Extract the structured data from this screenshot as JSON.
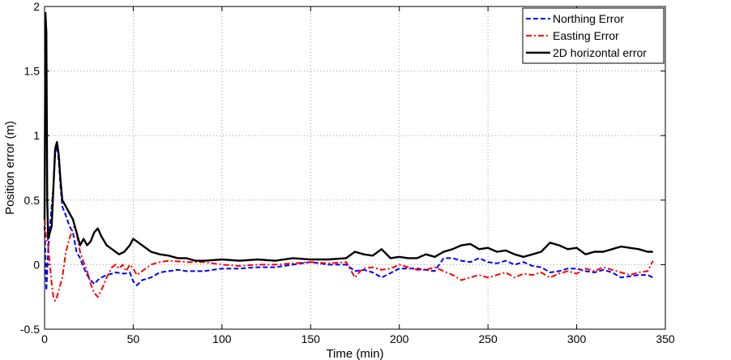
{
  "chart_data": {
    "type": "line",
    "title": "",
    "xlabel": "Time (min)",
    "ylabel": "Position error (m)",
    "xlim": [
      0,
      350
    ],
    "ylim": [
      -0.5,
      2
    ],
    "xticks": [
      0,
      50,
      100,
      150,
      200,
      250,
      300,
      350
    ],
    "yticks": [
      -0.5,
      0,
      0.5,
      1,
      1.5,
      2
    ],
    "xtick_labels": [
      "0",
      "50",
      "100",
      "150",
      "200",
      "250",
      "300",
      "350"
    ],
    "ytick_labels": [
      "-0.5",
      "0",
      "0.5",
      "1",
      "1.5",
      "2"
    ],
    "grid": true,
    "legend_position": "top-right",
    "series": [
      {
        "name": "Northing Error",
        "color": "#0000ff",
        "style": "dashed",
        "points": [
          [
            0,
            0.3
          ],
          [
            1,
            -0.2
          ],
          [
            2,
            0.1
          ],
          [
            3,
            0.3
          ],
          [
            5,
            0.6
          ],
          [
            6,
            0.85
          ],
          [
            7,
            0.92
          ],
          [
            8,
            0.8
          ],
          [
            9,
            0.6
          ],
          [
            10,
            0.45
          ],
          [
            12,
            0.38
          ],
          [
            14,
            0.3
          ],
          [
            16,
            0.25
          ],
          [
            18,
            0.1
          ],
          [
            20,
            0.05
          ],
          [
            22,
            -0.02
          ],
          [
            24,
            -0.08
          ],
          [
            26,
            -0.12
          ],
          [
            28,
            -0.15
          ],
          [
            30,
            -0.12
          ],
          [
            32,
            -0.1
          ],
          [
            35,
            -0.08
          ],
          [
            38,
            -0.07
          ],
          [
            40,
            -0.06
          ],
          [
            45,
            -0.07
          ],
          [
            48,
            -0.06
          ],
          [
            50,
            -0.13
          ],
          [
            52,
            -0.16
          ],
          [
            55,
            -0.12
          ],
          [
            60,
            -0.1
          ],
          [
            65,
            -0.06
          ],
          [
            70,
            -0.05
          ],
          [
            75,
            -0.04
          ],
          [
            80,
            -0.05
          ],
          [
            90,
            -0.05
          ],
          [
            100,
            -0.03
          ],
          [
            110,
            -0.03
          ],
          [
            120,
            -0.02
          ],
          [
            130,
            -0.02
          ],
          [
            140,
            0.0
          ],
          [
            150,
            0.02
          ],
          [
            160,
            0.0
          ],
          [
            170,
            0.0
          ],
          [
            175,
            -0.05
          ],
          [
            180,
            -0.04
          ],
          [
            185,
            -0.06
          ],
          [
            190,
            -0.1
          ],
          [
            193,
            -0.08
          ],
          [
            200,
            -0.03
          ],
          [
            210,
            -0.03
          ],
          [
            220,
            -0.05
          ],
          [
            225,
            0.05
          ],
          [
            230,
            0.05
          ],
          [
            235,
            0.03
          ],
          [
            240,
            0.02
          ],
          [
            245,
            0.05
          ],
          [
            250,
            0.02
          ],
          [
            255,
            0.01
          ],
          [
            260,
            0.03
          ],
          [
            265,
            0.0
          ],
          [
            270,
            0.02
          ],
          [
            275,
            -0.01
          ],
          [
            280,
            -0.02
          ],
          [
            285,
            -0.06
          ],
          [
            290,
            -0.05
          ],
          [
            295,
            -0.03
          ],
          [
            300,
            -0.03
          ],
          [
            305,
            -0.05
          ],
          [
            310,
            -0.06
          ],
          [
            315,
            -0.04
          ],
          [
            320,
            -0.06
          ],
          [
            325,
            -0.1
          ],
          [
            330,
            -0.09
          ],
          [
            335,
            -0.08
          ],
          [
            340,
            -0.08
          ],
          [
            343,
            -0.1
          ]
        ]
      },
      {
        "name": "Easting Error",
        "color": "#ff0000",
        "style": "dashdot",
        "points": [
          [
            0,
            0.35
          ],
          [
            1,
            0.2
          ],
          [
            2,
            0.15
          ],
          [
            3,
            0.0
          ],
          [
            4,
            -0.15
          ],
          [
            5,
            -0.25
          ],
          [
            6,
            -0.28
          ],
          [
            7,
            -0.25
          ],
          [
            8,
            -0.2
          ],
          [
            10,
            -0.1
          ],
          [
            12,
            0.1
          ],
          [
            14,
            0.2
          ],
          [
            16,
            0.28
          ],
          [
            17,
            0.3
          ],
          [
            18,
            0.25
          ],
          [
            20,
            0.1
          ],
          [
            22,
            0.02
          ],
          [
            24,
            -0.05
          ],
          [
            26,
            -0.15
          ],
          [
            28,
            -0.22
          ],
          [
            30,
            -0.25
          ],
          [
            32,
            -0.2
          ],
          [
            35,
            -0.1
          ],
          [
            38,
            -0.02
          ],
          [
            40,
            0.0
          ],
          [
            42,
            -0.03
          ],
          [
            44,
            0.0
          ],
          [
            46,
            -0.05
          ],
          [
            48,
            0.0
          ],
          [
            50,
            -0.03
          ],
          [
            52,
            -0.08
          ],
          [
            55,
            -0.05
          ],
          [
            60,
            0.0
          ],
          [
            65,
            0.02
          ],
          [
            70,
            0.03
          ],
          [
            80,
            0.02
          ],
          [
            90,
            0.02
          ],
          [
            100,
            0.0
          ],
          [
            110,
            -0.01
          ],
          [
            120,
            0.0
          ],
          [
            130,
            0.0
          ],
          [
            140,
            0.01
          ],
          [
            150,
            0.02
          ],
          [
            160,
            0.01
          ],
          [
            170,
            0.02
          ],
          [
            175,
            -0.1
          ],
          [
            178,
            -0.05
          ],
          [
            180,
            -0.03
          ],
          [
            185,
            -0.02
          ],
          [
            190,
            -0.04
          ],
          [
            195,
            -0.03
          ],
          [
            200,
            0.0
          ],
          [
            205,
            -0.02
          ],
          [
            210,
            -0.04
          ],
          [
            215,
            -0.04
          ],
          [
            220,
            -0.02
          ],
          [
            225,
            -0.05
          ],
          [
            230,
            -0.08
          ],
          [
            235,
            -0.12
          ],
          [
            240,
            -0.1
          ],
          [
            245,
            -0.08
          ],
          [
            250,
            -0.1
          ],
          [
            255,
            -0.08
          ],
          [
            260,
            -0.06
          ],
          [
            265,
            -0.1
          ],
          [
            270,
            -0.07
          ],
          [
            275,
            -0.08
          ],
          [
            280,
            -0.06
          ],
          [
            285,
            -0.1
          ],
          [
            290,
            -0.07
          ],
          [
            295,
            -0.05
          ],
          [
            300,
            -0.07
          ],
          [
            305,
            -0.03
          ],
          [
            310,
            -0.05
          ],
          [
            315,
            -0.02
          ],
          [
            320,
            -0.04
          ],
          [
            325,
            -0.06
          ],
          [
            330,
            -0.08
          ],
          [
            335,
            -0.06
          ],
          [
            340,
            -0.05
          ],
          [
            343,
            0.03
          ]
        ]
      },
      {
        "name": "2D horizontal error",
        "color": "#000000",
        "style": "solid",
        "points": [
          [
            0,
            0.35
          ],
          [
            0.5,
            1.95
          ],
          [
            1,
            1.8
          ],
          [
            1.5,
            0.5
          ],
          [
            2,
            0.2
          ],
          [
            3,
            0.25
          ],
          [
            4,
            0.3
          ],
          [
            5,
            0.6
          ],
          [
            6,
            0.9
          ],
          [
            7,
            0.95
          ],
          [
            8,
            0.85
          ],
          [
            9,
            0.65
          ],
          [
            10,
            0.5
          ],
          [
            12,
            0.45
          ],
          [
            14,
            0.4
          ],
          [
            16,
            0.35
          ],
          [
            18,
            0.25
          ],
          [
            20,
            0.15
          ],
          [
            22,
            0.2
          ],
          [
            24,
            0.15
          ],
          [
            26,
            0.18
          ],
          [
            28,
            0.25
          ],
          [
            30,
            0.28
          ],
          [
            32,
            0.22
          ],
          [
            35,
            0.15
          ],
          [
            38,
            0.12
          ],
          [
            40,
            0.1
          ],
          [
            42,
            0.08
          ],
          [
            45,
            0.1
          ],
          [
            48,
            0.15
          ],
          [
            50,
            0.2
          ],
          [
            52,
            0.18
          ],
          [
            55,
            0.15
          ],
          [
            60,
            0.1
          ],
          [
            65,
            0.08
          ],
          [
            70,
            0.07
          ],
          [
            75,
            0.05
          ],
          [
            80,
            0.05
          ],
          [
            85,
            0.03
          ],
          [
            90,
            0.03
          ],
          [
            100,
            0.04
          ],
          [
            110,
            0.03
          ],
          [
            120,
            0.04
          ],
          [
            130,
            0.03
          ],
          [
            140,
            0.05
          ],
          [
            150,
            0.04
          ],
          [
            160,
            0.04
          ],
          [
            170,
            0.05
          ],
          [
            175,
            0.1
          ],
          [
            180,
            0.08
          ],
          [
            185,
            0.07
          ],
          [
            190,
            0.12
          ],
          [
            195,
            0.05
          ],
          [
            200,
            0.06
          ],
          [
            205,
            0.05
          ],
          [
            210,
            0.05
          ],
          [
            215,
            0.08
          ],
          [
            220,
            0.06
          ],
          [
            225,
            0.1
          ],
          [
            230,
            0.12
          ],
          [
            235,
            0.15
          ],
          [
            240,
            0.16
          ],
          [
            245,
            0.12
          ],
          [
            250,
            0.13
          ],
          [
            255,
            0.1
          ],
          [
            260,
            0.11
          ],
          [
            265,
            0.08
          ],
          [
            270,
            0.06
          ],
          [
            275,
            0.08
          ],
          [
            280,
            0.1
          ],
          [
            285,
            0.17
          ],
          [
            290,
            0.15
          ],
          [
            295,
            0.12
          ],
          [
            300,
            0.13
          ],
          [
            305,
            0.08
          ],
          [
            310,
            0.1
          ],
          [
            315,
            0.1
          ],
          [
            320,
            0.12
          ],
          [
            325,
            0.14
          ],
          [
            330,
            0.13
          ],
          [
            335,
            0.12
          ],
          [
            340,
            0.1
          ],
          [
            343,
            0.1
          ]
        ]
      }
    ]
  }
}
